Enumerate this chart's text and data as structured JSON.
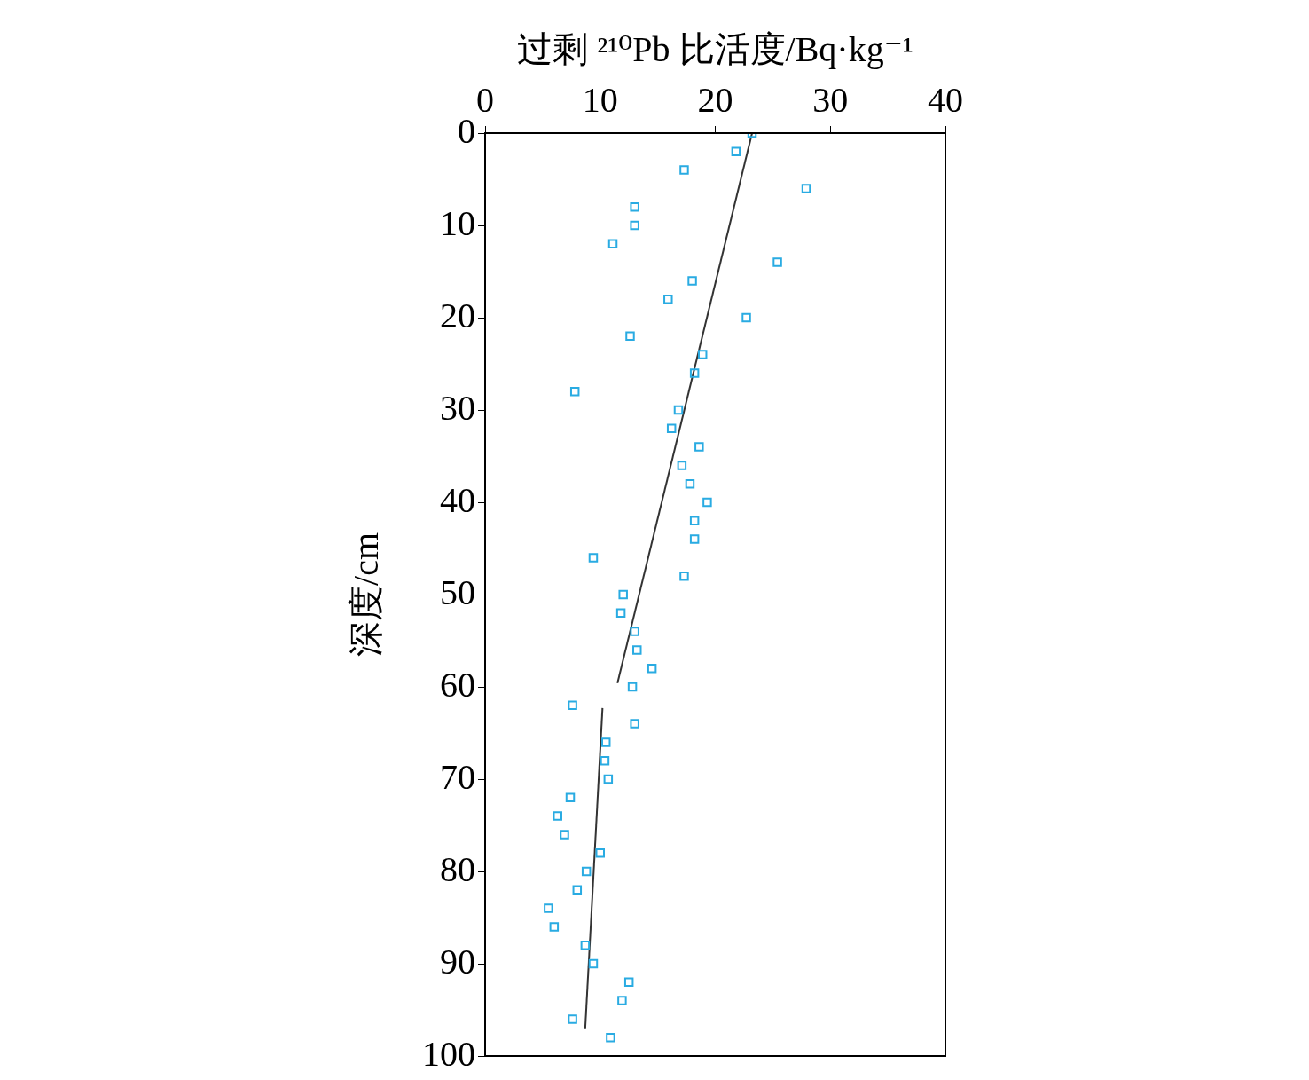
{
  "chart_data": {
    "type": "scatter",
    "xlabel": "过剩 ²¹⁰Pb 比活度/Bq·kg⁻¹",
    "ylabel": "深度/cm",
    "xlim": [
      0,
      40
    ],
    "xticks": [
      0,
      10,
      20,
      30,
      40
    ],
    "ylim": [
      100,
      0
    ],
    "yticks": [
      0,
      10,
      20,
      30,
      40,
      50,
      60,
      70,
      80,
      90,
      100
    ],
    "grid": false,
    "legend": false,
    "series": [
      {
        "marker": "square",
        "color": "#29abe2",
        "x": [
          23.2,
          21.8,
          17.3,
          27.9,
          13.0,
          13.0,
          11.1,
          25.4,
          18.0,
          15.9,
          22.7,
          12.6,
          18.9,
          18.2,
          7.8,
          16.8,
          16.2,
          18.6,
          17.1,
          17.8,
          19.3,
          18.2,
          18.2,
          9.4,
          17.3,
          12.0,
          11.8,
          13.0,
          13.2,
          14.5,
          12.8,
          7.6,
          13.0,
          10.5,
          10.4,
          10.7,
          7.4,
          6.3,
          6.9,
          10.0,
          8.8,
          8.0,
          5.5,
          6.0,
          8.7,
          9.4,
          12.5,
          11.9,
          7.6,
          10.9
        ],
        "values": [
          0,
          2,
          4,
          6,
          8,
          10,
          12,
          14,
          16,
          18,
          20,
          22,
          24,
          26,
          28,
          30,
          32,
          34,
          36,
          38,
          40,
          42,
          44,
          46,
          48,
          50,
          52,
          54,
          56,
          58,
          60,
          62,
          64,
          66,
          68,
          70,
          72,
          74,
          76,
          78,
          80,
          82,
          84,
          86,
          88,
          90,
          92,
          94,
          96,
          98
        ]
      },
      {
        "type": "line",
        "marker": "none",
        "color": "#333333",
        "x": [
          23.2,
          11.5
        ],
        "values": [
          0,
          59.6
        ]
      },
      {
        "type": "line",
        "marker": "none",
        "color": "#333333",
        "x": [
          10.2,
          8.7
        ],
        "values": [
          62.3,
          97
        ]
      }
    ]
  }
}
